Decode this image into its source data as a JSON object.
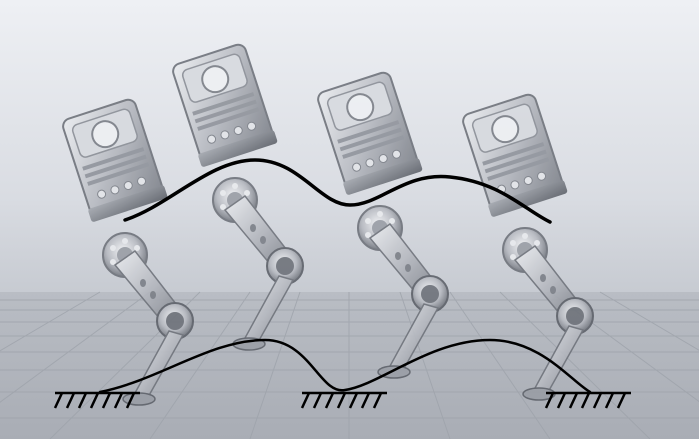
{
  "image": {
    "subject": "legged-robot-gait-sequence",
    "colors": {
      "background_top": "#eef0f4",
      "background_bottom": "#b4b8bf",
      "grid_floor": "#bcc0c7",
      "grid_lines": "#9ea3ab",
      "robot_body": "#b9bcc3",
      "robot_dark": "#6f737b",
      "robot_highlight": "#e6e8ec",
      "trajectory": "#000000",
      "ground_symbol": "#000000"
    },
    "robot_poses": 4
  }
}
